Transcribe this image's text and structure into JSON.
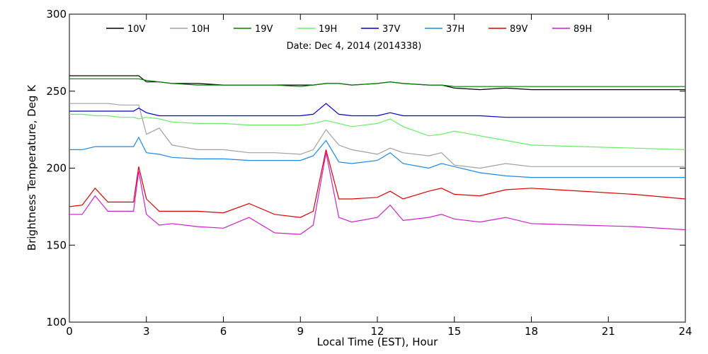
{
  "chart_data": {
    "type": "line",
    "annotation": "Date: Dec  4, 2014 (2014338)",
    "xlabel": "Local Time (EST), Hour",
    "ylabel": "Brightness Temperature, Deg K",
    "xlim": [
      0,
      24
    ],
    "ylim": [
      100,
      300
    ],
    "xticks": [
      0,
      3,
      6,
      9,
      12,
      15,
      18,
      21,
      24
    ],
    "yticks": [
      100,
      150,
      200,
      250,
      300
    ],
    "grid": false,
    "legend_position": "top",
    "x": [
      0,
      0.5,
      1,
      1.5,
      2,
      2.5,
      2.7,
      3,
      3.5,
      4,
      5,
      6,
      7,
      8,
      9,
      9.5,
      10,
      10.5,
      11,
      12,
      12.5,
      13,
      14,
      14.5,
      15,
      16,
      17,
      18,
      20,
      22,
      24
    ],
    "series": [
      {
        "name": "10V",
        "color": "#000000",
        "values": [
          260,
          260,
          260,
          260,
          260,
          260,
          260,
          256,
          256,
          255,
          255,
          254,
          254,
          254,
          254,
          254,
          255,
          255,
          254,
          255,
          256,
          255,
          254,
          254,
          252,
          251,
          252,
          251,
          251,
          251,
          251
        ]
      },
      {
        "name": "10H",
        "color": "#a0a0a0",
        "values": [
          242,
          242,
          242,
          242,
          241,
          241,
          241,
          222,
          226,
          215,
          212,
          212,
          210,
          210,
          209,
          212,
          225,
          215,
          212,
          209,
          213,
          210,
          208,
          210,
          202,
          200,
          203,
          201,
          201,
          201,
          201
        ]
      },
      {
        "name": "19V",
        "color": "#008000",
        "values": [
          258,
          258,
          258,
          258,
          258,
          258,
          258,
          257,
          256,
          255,
          254,
          254,
          254,
          254,
          253,
          254,
          255,
          255,
          254,
          255,
          256,
          255,
          254,
          254,
          253,
          253,
          253,
          253,
          253,
          253,
          253
        ]
      },
      {
        "name": "19H",
        "color": "#66ee66",
        "values": [
          235,
          235,
          234,
          234,
          233,
          233,
          232,
          233,
          232,
          230,
          229,
          229,
          228,
          228,
          228,
          229,
          231,
          229,
          227,
          229,
          232,
          227,
          221,
          222,
          224,
          221,
          218,
          215,
          214,
          213,
          212
        ]
      },
      {
        "name": "37V",
        "color": "#0000cc",
        "values": [
          237,
          237,
          237,
          237,
          237,
          237,
          239,
          236,
          234,
          234,
          234,
          234,
          234,
          234,
          234,
          235,
          242,
          235,
          234,
          234,
          236,
          234,
          234,
          234,
          234,
          234,
          233,
          233,
          233,
          233,
          233
        ]
      },
      {
        "name": "37H",
        "color": "#1e88e5",
        "values": [
          212,
          212,
          214,
          214,
          214,
          214,
          220,
          210,
          209,
          207,
          206,
          206,
          205,
          205,
          205,
          208,
          218,
          204,
          203,
          205,
          210,
          203,
          200,
          203,
          201,
          197,
          195,
          194,
          194,
          194,
          194
        ]
      },
      {
        "name": "89V",
        "color": "#dd0000",
        "values": [
          175,
          176,
          187,
          178,
          178,
          178,
          201,
          180,
          172,
          172,
          172,
          171,
          177,
          170,
          168,
          172,
          212,
          180,
          180,
          181,
          185,
          180,
          185,
          187,
          183,
          182,
          186,
          187,
          185,
          183,
          180
        ]
      },
      {
        "name": "89H",
        "color": "#cc22cc",
        "values": [
          170,
          170,
          182,
          172,
          172,
          172,
          198,
          170,
          163,
          164,
          162,
          161,
          168,
          158,
          157,
          163,
          210,
          168,
          165,
          168,
          176,
          166,
          168,
          170,
          167,
          165,
          168,
          164,
          163,
          162,
          160
        ]
      }
    ]
  }
}
